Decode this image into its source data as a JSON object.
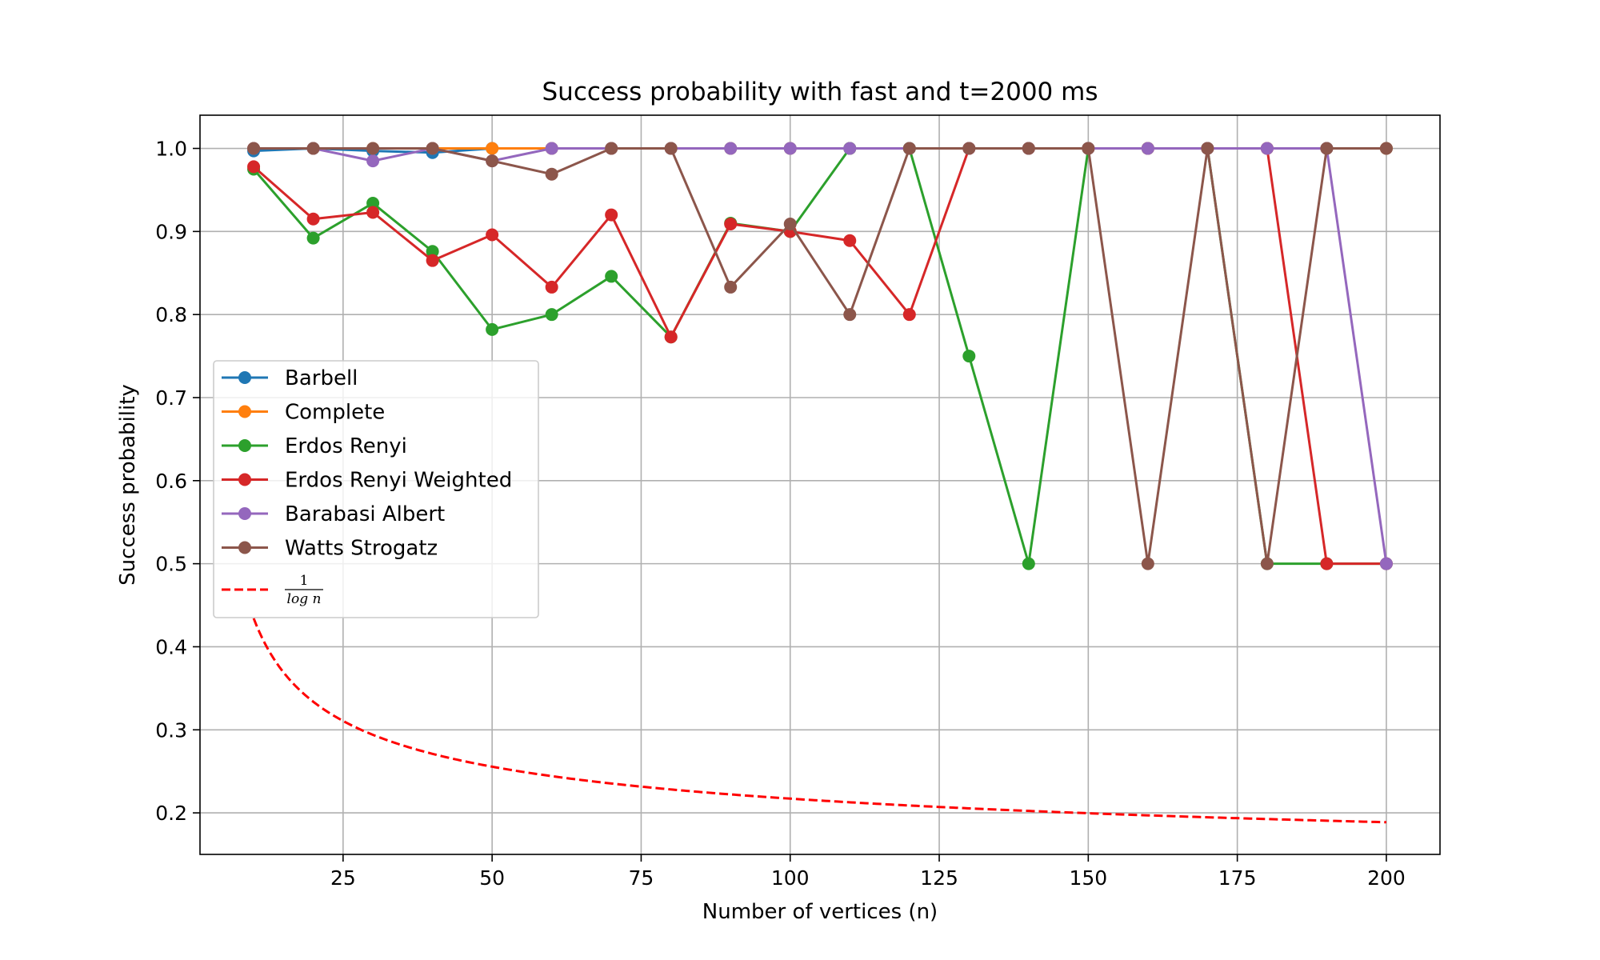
{
  "chart_data": {
    "type": "line",
    "title": "Success probability with fast and t=2000 ms",
    "xlabel": "Number of vertices (n)",
    "ylabel": "Success probability",
    "xlim": [
      1,
      209
    ],
    "ylim": [
      0.15,
      1.04
    ],
    "xticks": [
      25,
      50,
      75,
      100,
      125,
      150,
      175,
      200
    ],
    "xtick_labels": [
      "25",
      "50",
      "75",
      "100",
      "125",
      "150",
      "175",
      "200"
    ],
    "yticks": [
      0.2,
      0.3,
      0.4,
      0.5,
      0.6,
      0.7,
      0.8,
      0.9,
      1.0
    ],
    "ytick_labels": [
      "0.2",
      "0.3",
      "0.4",
      "0.5",
      "0.6",
      "0.7",
      "0.8",
      "0.9",
      "1.0"
    ],
    "grid": true,
    "legend_position": "center-left",
    "x": [
      10,
      20,
      30,
      40,
      50,
      60,
      70,
      80,
      90,
      100,
      110,
      120,
      130,
      140,
      150,
      160,
      170,
      180,
      190,
      200
    ],
    "series": [
      {
        "name": "Barbell",
        "color": "#1f77b4",
        "marker": "circle",
        "values": [
          0.997,
          1.0,
          0.997,
          0.995,
          1.0,
          1.0,
          1.0,
          1.0,
          1.0,
          1.0,
          1.0,
          1.0,
          1.0,
          1.0,
          1.0,
          1.0,
          1.0,
          1.0,
          1.0,
          1.0
        ]
      },
      {
        "name": "Complete",
        "color": "#ff7f0e",
        "marker": "circle",
        "values": [
          1.0,
          1.0,
          1.0,
          1.0,
          1.0,
          1.0,
          1.0,
          1.0,
          1.0,
          1.0,
          1.0,
          1.0,
          1.0,
          1.0,
          1.0,
          1.0,
          1.0,
          1.0,
          1.0,
          1.0
        ]
      },
      {
        "name": "Erdos Renyi",
        "color": "#2ca02c",
        "marker": "circle",
        "values": [
          0.975,
          0.892,
          0.934,
          0.876,
          0.782,
          0.8,
          0.846,
          0.773,
          0.91,
          0.9,
          1.0,
          1.0,
          0.75,
          0.5,
          1.0,
          1.0,
          1.0,
          0.5,
          0.5,
          0.5
        ]
      },
      {
        "name": "Erdos Renyi Weighted",
        "color": "#d62728",
        "marker": "circle",
        "values": [
          0.978,
          0.915,
          0.923,
          0.865,
          0.896,
          0.833,
          0.92,
          0.773,
          0.909,
          0.9,
          0.889,
          0.8,
          1.0,
          1.0,
          1.0,
          1.0,
          1.0,
          1.0,
          0.5,
          0.5
        ]
      },
      {
        "name": "Barabasi Albert",
        "color": "#9467bd",
        "marker": "circle",
        "values": [
          1.0,
          1.0,
          0.985,
          1.0,
          0.985,
          1.0,
          1.0,
          1.0,
          1.0,
          1.0,
          1.0,
          1.0,
          1.0,
          1.0,
          1.0,
          1.0,
          1.0,
          1.0,
          1.0,
          0.5
        ]
      },
      {
        "name": "Watts Strogatz",
        "color": "#8c564b",
        "marker": "circle",
        "values": [
          1.0,
          1.0,
          1.0,
          1.0,
          0.985,
          0.969,
          1.0,
          1.0,
          0.833,
          0.909,
          0.8,
          1.0,
          1.0,
          1.0,
          1.0,
          0.5,
          1.0,
          0.5,
          1.0,
          1.0
        ]
      }
    ],
    "reference_curve": {
      "name_numerator": "1",
      "name_denominator": "log n",
      "color": "#ff0000",
      "style": "dashed",
      "formula": "1/ln(n)",
      "x_range": [
        10,
        200
      ]
    }
  }
}
